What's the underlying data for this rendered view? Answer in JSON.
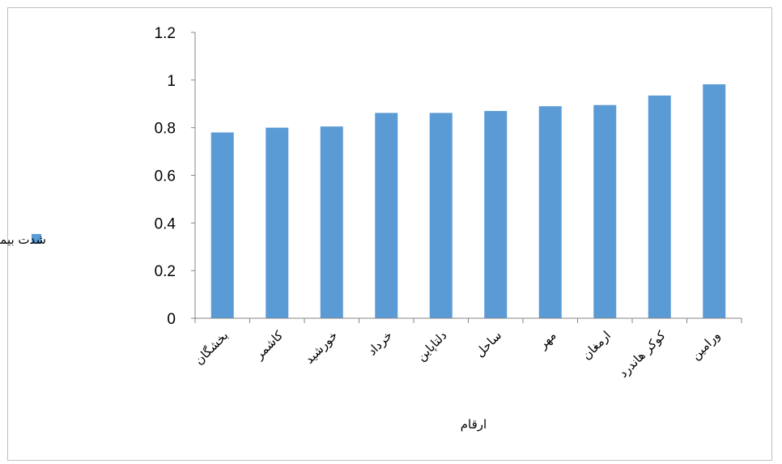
{
  "chart_data": {
    "type": "bar",
    "categories": [
      "بخشگان",
      "کاشمر",
      "خورشید",
      "خرداد",
      "دلتاپاین",
      "ساحل",
      "مهر",
      "ارمغان",
      "کوکر هاندرد",
      "ورامین"
    ],
    "series": [
      {
        "name": "شدت بیماری",
        "values": [
          0.78,
          0.8,
          0.805,
          0.862,
          0.862,
          0.87,
          0.89,
          0.895,
          0.935,
          0.982
        ]
      }
    ],
    "title": "",
    "xlabel": "ارقام",
    "ylabel": "",
    "ylim": [
      0,
      1.2
    ],
    "yticks": [
      "0",
      "0.2",
      "0.4",
      "0.6",
      "0.8",
      "1",
      "1.2"
    ],
    "grid": false,
    "legend_position": "left",
    "bar_color": "#5b9bd5"
  }
}
